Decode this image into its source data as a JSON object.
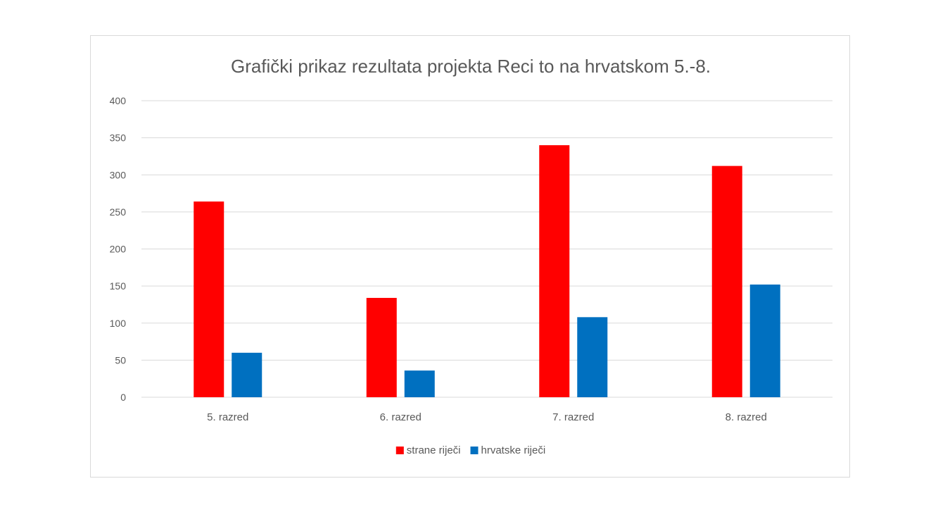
{
  "chart_data": {
    "type": "bar",
    "title": "Grafički prikaz rezultata projekta Reci to na hrvatskom 5.-8.",
    "categories": [
      "5. razred",
      "6. razred",
      "7. razred",
      "8. razred"
    ],
    "series": [
      {
        "name": "strane riječi",
        "color": "#ff0000",
        "values": [
          264,
          134,
          340,
          312
        ]
      },
      {
        "name": "hrvatske riječi",
        "color": "#0070c0",
        "values": [
          60,
          36,
          108,
          152
        ]
      }
    ],
    "ylim": [
      0,
      400
    ],
    "yticks": [
      0,
      50,
      100,
      150,
      200,
      250,
      300,
      350,
      400
    ],
    "ytick_labels": [
      "0",
      "50",
      "100",
      "150",
      "200",
      "250",
      "300",
      "350",
      "400"
    ],
    "xlabel": "",
    "ylabel": "",
    "grid": true,
    "legend_position": "bottom"
  }
}
